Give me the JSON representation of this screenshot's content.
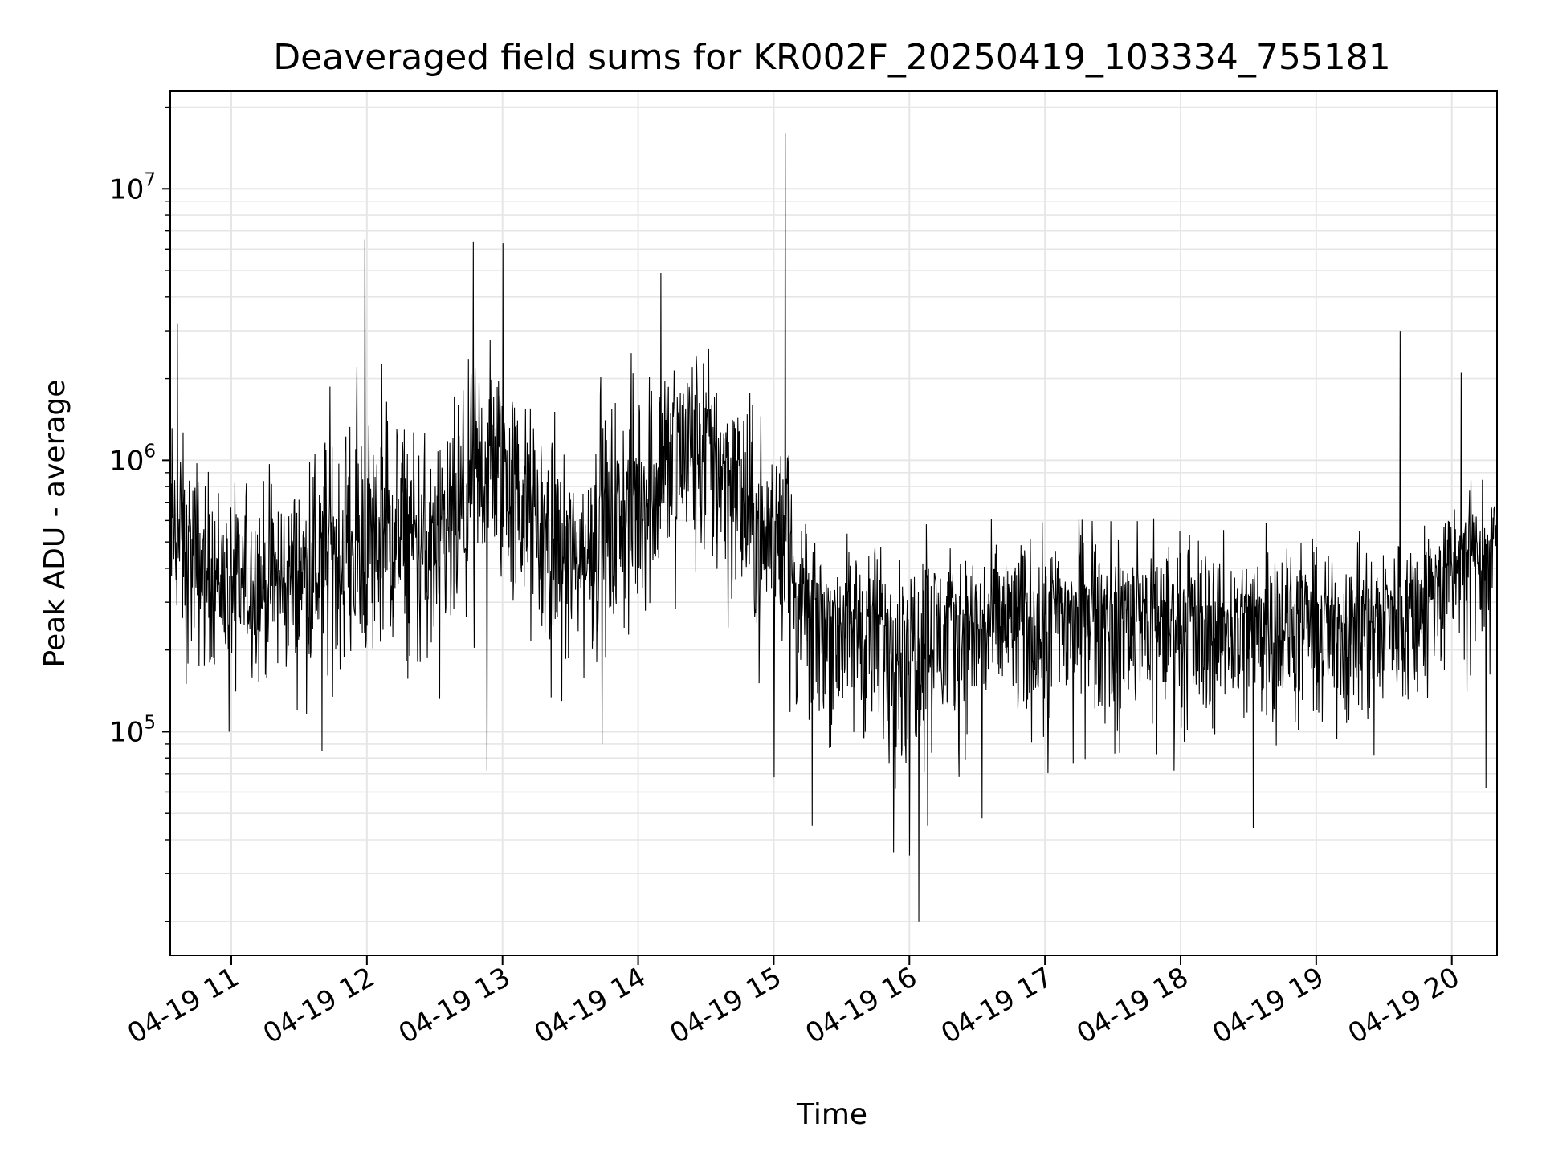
{
  "chart_data": {
    "type": "line",
    "title": "Deaveraged field sums for KR002F_20250419_103334_755181",
    "xlabel": "Time",
    "ylabel": "Peak ADU - average",
    "y_scale": "log",
    "ylim": [
      15000,
      23000000
    ],
    "xlim": [
      "2025-04-19 10:33",
      "2025-04-19 20:20"
    ],
    "grid": true,
    "line_color": "#000000",
    "x_ticks": [
      {
        "time": "2025-04-19 11:00",
        "label": "04-19 11"
      },
      {
        "time": "2025-04-19 12:00",
        "label": "04-19 12"
      },
      {
        "time": "2025-04-19 13:00",
        "label": "04-19 13"
      },
      {
        "time": "2025-04-19 14:00",
        "label": "04-19 14"
      },
      {
        "time": "2025-04-19 15:00",
        "label": "04-19 15"
      },
      {
        "time": "2025-04-19 16:00",
        "label": "04-19 16"
      },
      {
        "time": "2025-04-19 17:00",
        "label": "04-19 17"
      },
      {
        "time": "2025-04-19 18:00",
        "label": "04-19 18"
      },
      {
        "time": "2025-04-19 19:00",
        "label": "04-19 19"
      },
      {
        "time": "2025-04-19 20:00",
        "label": "04-19 20"
      }
    ],
    "y_ticks": [
      {
        "value": 100000,
        "base": "10",
        "exp": "5"
      },
      {
        "value": 1000000,
        "base": "10",
        "exp": "6"
      },
      {
        "value": 10000000,
        "base": "10",
        "exp": "7"
      }
    ],
    "series": [
      {
        "time": [
          "2025-04-19 10:33",
          "2025-04-19 10:45",
          "2025-04-19 11:00",
          "2025-04-19 11:15",
          "2025-04-19 11:30",
          "2025-04-19 11:40",
          "2025-04-19 11:55",
          "2025-04-19 12:15",
          "2025-04-19 12:30",
          "2025-04-19 12:45",
          "2025-04-19 12:53",
          "2025-04-19 13:00",
          "2025-04-19 13:15",
          "2025-04-19 13:30",
          "2025-04-19 13:45",
          "2025-04-19 14:00",
          "2025-04-19 14:15",
          "2025-04-19 14:30",
          "2025-04-19 14:45",
          "2025-04-19 14:55",
          "2025-04-19 15:06",
          "2025-04-19 15:10",
          "2025-04-19 15:20",
          "2025-04-19 15:40",
          "2025-04-19 16:00",
          "2025-04-19 16:04",
          "2025-04-19 16:20",
          "2025-04-19 16:40",
          "2025-04-19 17:00",
          "2025-04-19 17:20",
          "2025-04-19 17:40",
          "2025-04-19 18:00",
          "2025-04-19 18:20",
          "2025-04-19 18:40",
          "2025-04-19 19:00",
          "2025-04-19 19:20",
          "2025-04-19 19:37",
          "2025-04-19 19:45",
          "2025-04-19 20:05",
          "2025-04-19 20:20"
        ],
        "median": [
          600000,
          400000,
          350000,
          350000,
          380000,
          400000,
          450000,
          500000,
          420000,
          700000,
          1000000,
          900000,
          600000,
          400000,
          500000,
          700000,
          1100000,
          1200000,
          800000,
          500000,
          700000,
          300000,
          270000,
          250000,
          230000,
          250000,
          240000,
          260000,
          270000,
          280000,
          270000,
          260000,
          250000,
          260000,
          250000,
          260000,
          280000,
          300000,
          450000,
          520000
        ],
        "upper": [
          2000000,
          1500000,
          1000000,
          1200000,
          1100000,
          2500000,
          3000000,
          2500000,
          1800000,
          3000000,
          5000000,
          3500000,
          2000000,
          1500000,
          2500000,
          3500000,
          4000000,
          3500000,
          2500000,
          2000000,
          2000000,
          650000,
          600000,
          650000,
          600000,
          650000,
          600000,
          650000,
          700000,
          650000,
          650000,
          700000,
          600000,
          650000,
          550000,
          600000,
          650000,
          700000,
          900000,
          900000
        ],
        "lower": [
          150000,
          120000,
          130000,
          110000,
          100000,
          110000,
          120000,
          130000,
          110000,
          150000,
          250000,
          200000,
          120000,
          110000,
          130000,
          150000,
          250000,
          200000,
          150000,
          120000,
          110000,
          80000,
          60000,
          55000,
          40000,
          50000,
          60000,
          65000,
          60000,
          70000,
          75000,
          70000,
          65000,
          70000,
          65000,
          70000,
          75000,
          80000,
          120000,
          150000
        ],
        "spikes": [
          {
            "time": "2025-04-19 10:36",
            "value": 3200000
          },
          {
            "time": "2025-04-19 10:40",
            "value": 150000
          },
          {
            "time": "2025-04-19 10:59",
            "value": 100000
          },
          {
            "time": "2025-04-19 11:40",
            "value": 85000
          },
          {
            "time": "2025-04-19 11:59",
            "value": 6500000
          },
          {
            "time": "2025-04-19 12:47",
            "value": 6400000
          },
          {
            "time": "2025-04-19 12:53",
            "value": 72000
          },
          {
            "time": "2025-04-19 13:00",
            "value": 6300000
          },
          {
            "time": "2025-04-19 13:44",
            "value": 90000
          },
          {
            "time": "2025-04-19 14:10",
            "value": 4900000
          },
          {
            "time": "2025-04-19 15:00",
            "value": 68000
          },
          {
            "time": "2025-04-19 15:05",
            "value": 16000000
          },
          {
            "time": "2025-04-19 15:17",
            "value": 45000
          },
          {
            "time": "2025-04-19 15:53",
            "value": 36000
          },
          {
            "time": "2025-04-19 16:00",
            "value": 35000
          },
          {
            "time": "2025-04-19 16:04",
            "value": 20000
          },
          {
            "time": "2025-04-19 16:08",
            "value": 45000
          },
          {
            "time": "2025-04-19 16:32",
            "value": 48000
          },
          {
            "time": "2025-04-19 17:57",
            "value": 72000
          },
          {
            "time": "2025-04-19 18:32",
            "value": 44000
          },
          {
            "time": "2025-04-19 19:37",
            "value": 3000000
          },
          {
            "time": "2025-04-19 20:04",
            "value": 2100000
          },
          {
            "time": "2025-04-19 20:15",
            "value": 62000
          }
        ]
      }
    ]
  }
}
